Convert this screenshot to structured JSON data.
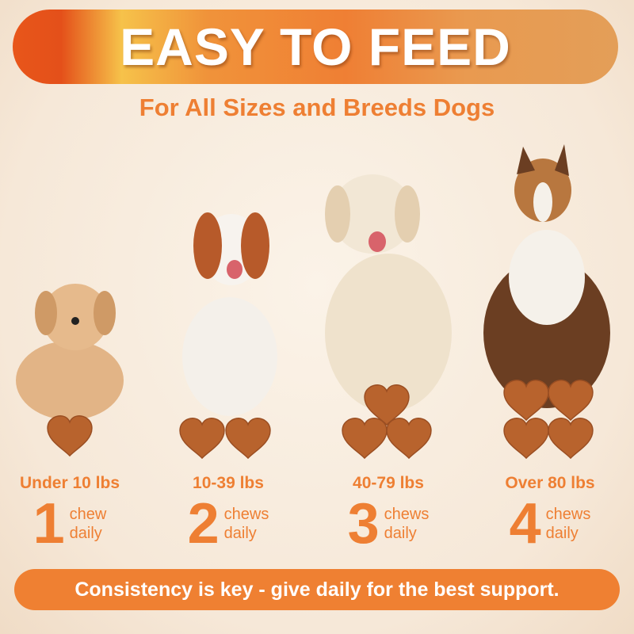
{
  "header": {
    "title": "EASY TO FEED"
  },
  "subtitle": "For All Sizes and Breeds Dogs",
  "colors": {
    "accent": "#ee7f33",
    "chew": "#b8632d",
    "banner_start": "#e4501a",
    "banner_mid": "#f6c24a"
  },
  "tiers": [
    {
      "weight": "Under 10 lbs",
      "count": "1",
      "unit": "chew",
      "freq": "daily"
    },
    {
      "weight": "10-39 lbs",
      "count": "2",
      "unit": "chews",
      "freq": "daily"
    },
    {
      "weight": "40-79 lbs",
      "count": "3",
      "unit": "chews",
      "freq": "daily"
    },
    {
      "weight": "Over 80 lbs",
      "count": "4",
      "unit": "chews",
      "freq": "daily"
    }
  ],
  "footer": {
    "text": "Consistency is key - give daily for the best support."
  }
}
